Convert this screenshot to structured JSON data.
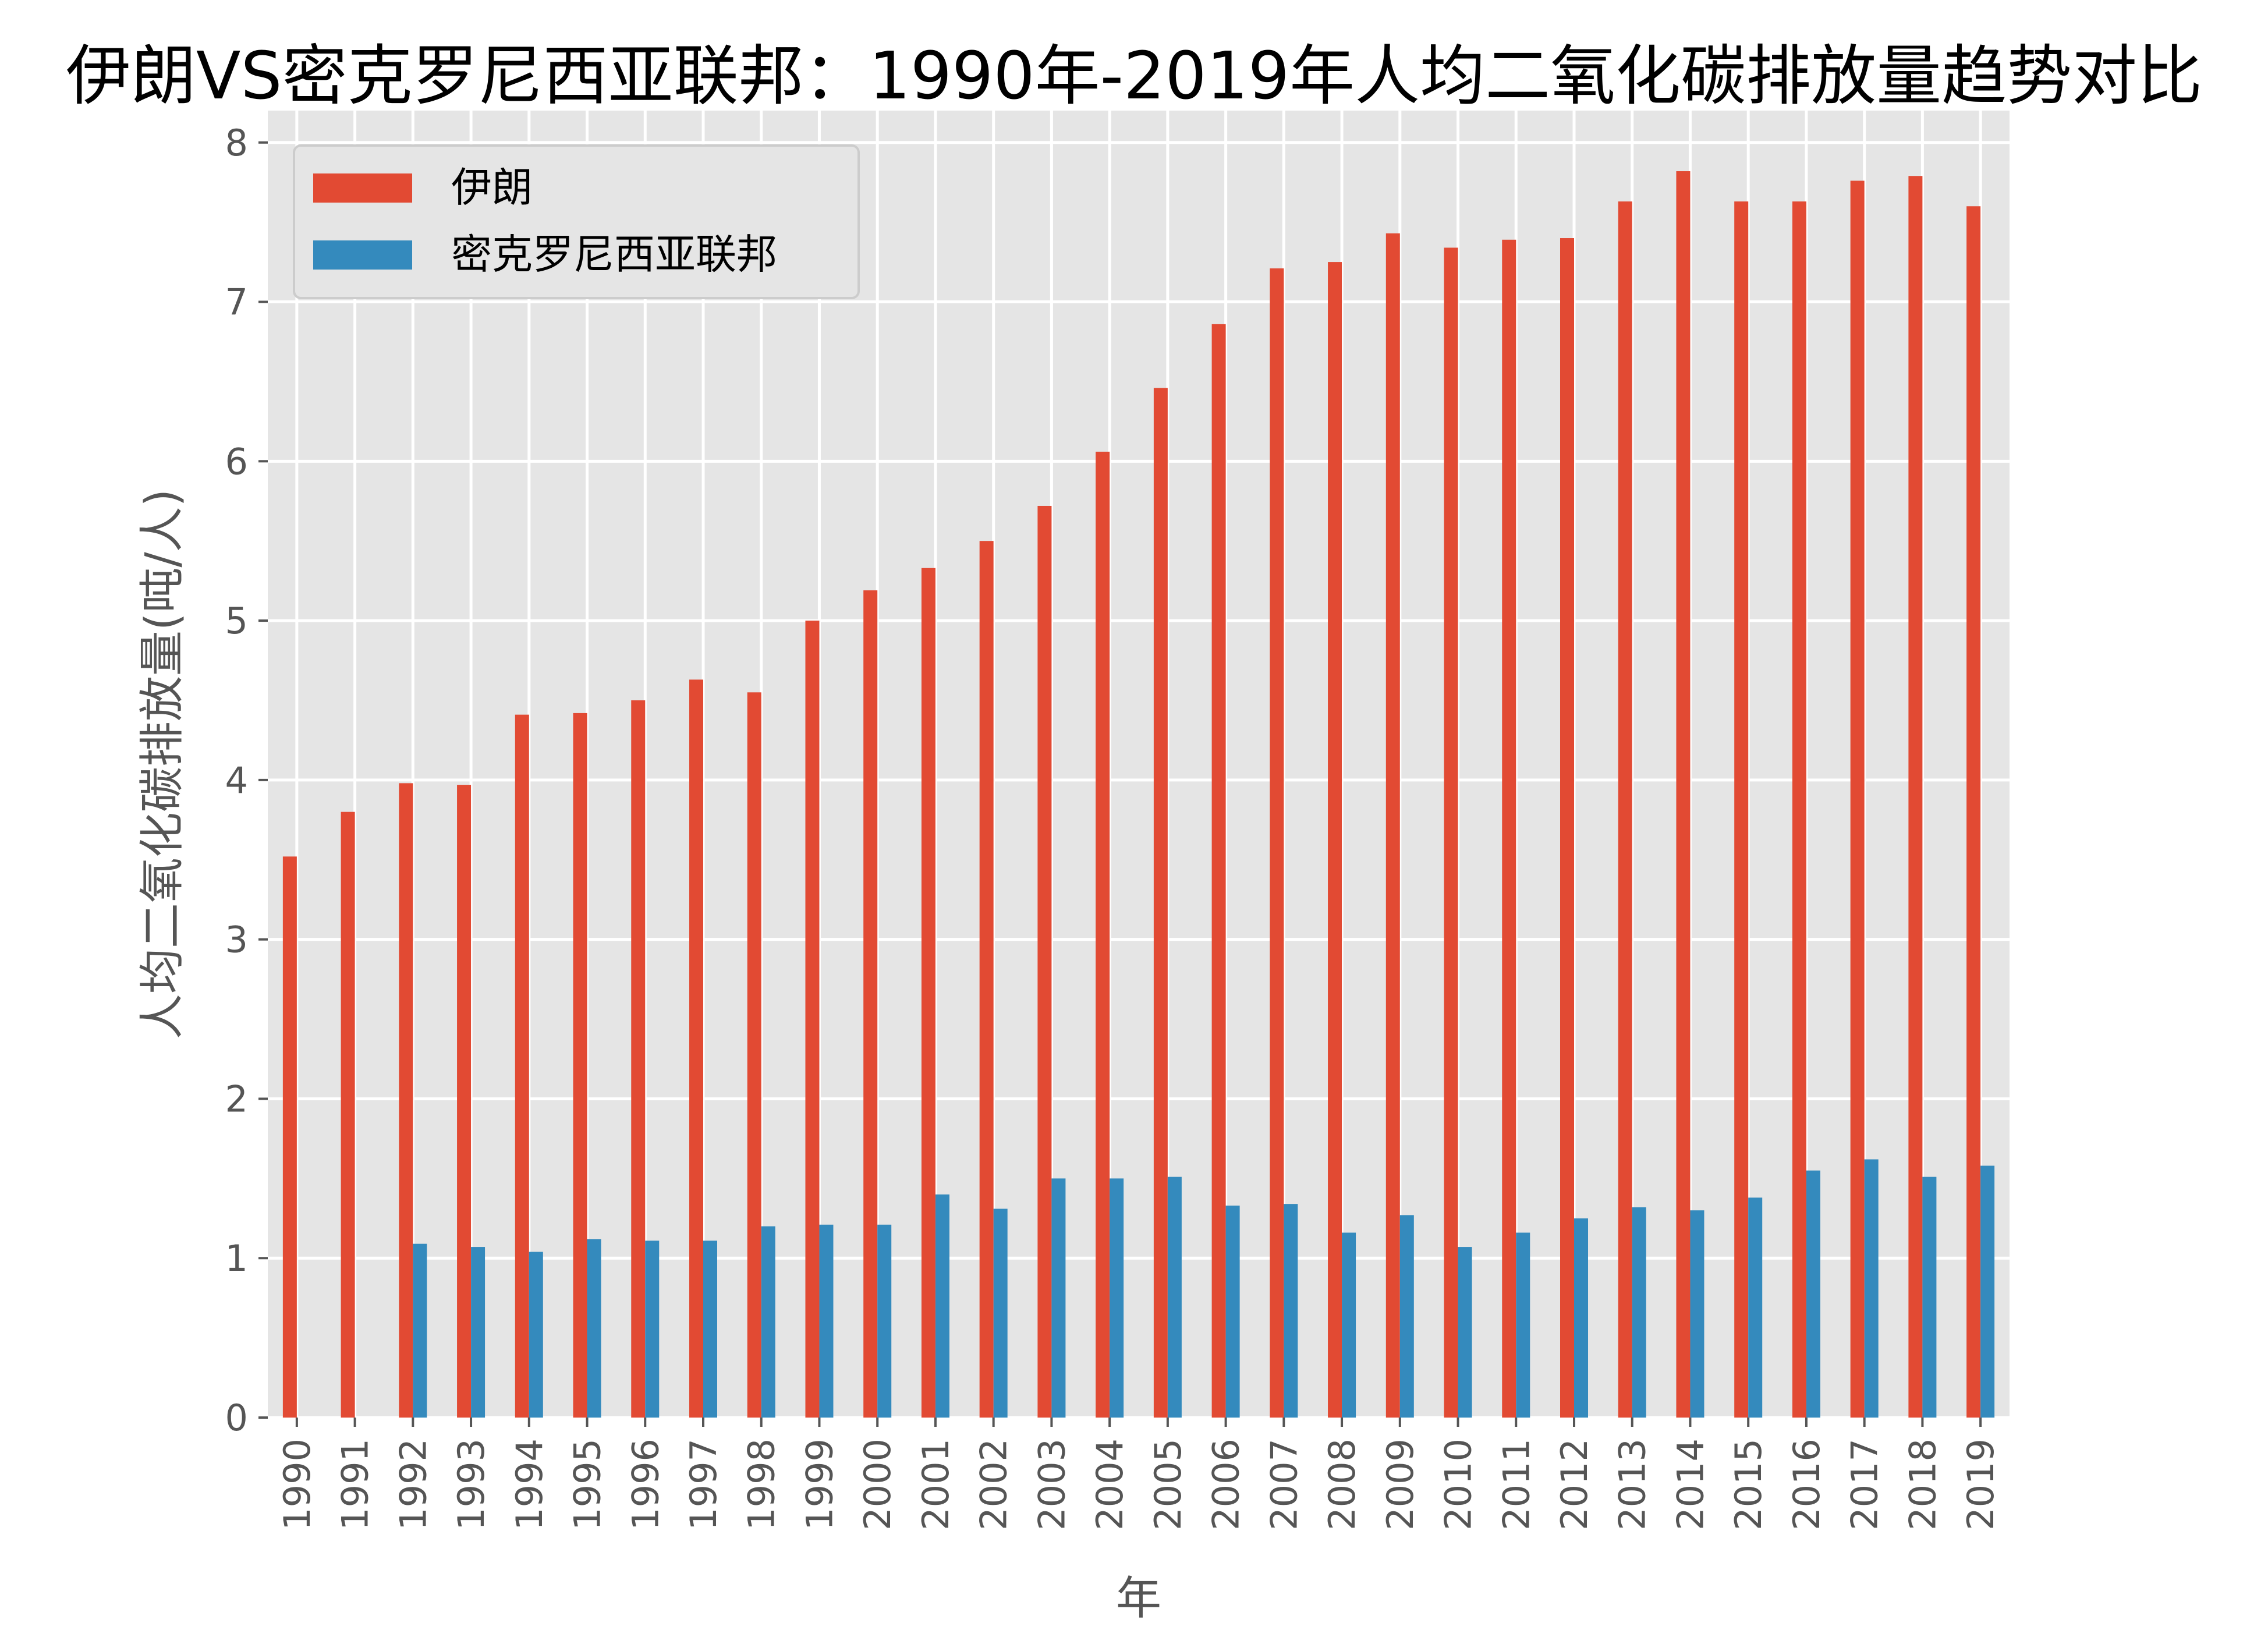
{
  "chart_data": {
    "type": "bar",
    "title": "伊朗VS密克罗尼西亚联邦：1990年-2019年人均二氧化碳排放量趋势对比",
    "xlabel": "年",
    "ylabel": "人均二氧化碳排放量(吨/人)",
    "ylim": [
      0,
      8.2
    ],
    "yticks": [
      0,
      1,
      2,
      3,
      4,
      5,
      6,
      7,
      8
    ],
    "grid": true,
    "legend_position": "top-left",
    "categories": [
      "1990",
      "1991",
      "1992",
      "1993",
      "1994",
      "1995",
      "1996",
      "1997",
      "1998",
      "1999",
      "2000",
      "2001",
      "2002",
      "2003",
      "2004",
      "2005",
      "2006",
      "2007",
      "2008",
      "2009",
      "2010",
      "2011",
      "2012",
      "2013",
      "2014",
      "2015",
      "2016",
      "2017",
      "2018",
      "2019"
    ],
    "series": [
      {
        "name": "伊朗",
        "color": "#E24A33",
        "values": [
          3.52,
          3.8,
          3.98,
          3.97,
          4.41,
          4.42,
          4.5,
          4.63,
          4.55,
          5.0,
          5.19,
          5.33,
          5.5,
          5.72,
          6.06,
          6.46,
          6.86,
          7.21,
          7.25,
          7.43,
          7.34,
          7.39,
          7.4,
          7.63,
          7.82,
          7.63,
          7.63,
          7.76,
          7.79,
          7.6
        ]
      },
      {
        "name": "密克罗尼西亚联邦",
        "color": "#348ABD",
        "values": [
          null,
          null,
          1.09,
          1.07,
          1.04,
          1.12,
          1.11,
          1.11,
          1.2,
          1.21,
          1.21,
          1.4,
          1.31,
          1.5,
          1.5,
          1.51,
          1.33,
          1.34,
          1.16,
          1.27,
          1.07,
          1.16,
          1.25,
          1.32,
          1.3,
          1.38,
          1.55,
          1.62,
          1.51,
          1.58
        ]
      }
    ]
  },
  "style": {
    "plot_background": "#E5E5E5",
    "grid_color": "#FFFFFF",
    "tick_color": "#555555",
    "legend_background": "#E5E5E5",
    "legend_border": "#CCCCCC"
  }
}
